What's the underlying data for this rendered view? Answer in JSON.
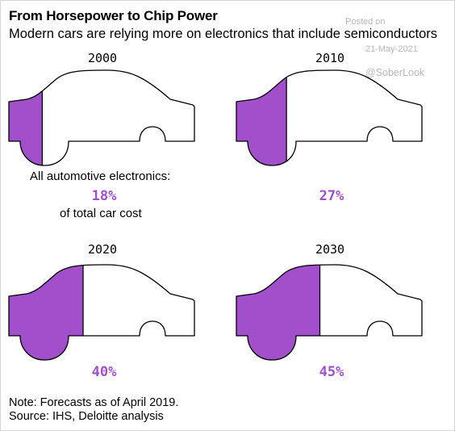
{
  "header": {
    "title": "From Horsepower to Chip Power",
    "subtitle": "Modern cars are relying more on electronics that include semiconductors"
  },
  "watermark": {
    "posted": "Posted on",
    "date": "21-May-2021",
    "handle": "@SoberLook"
  },
  "labels": {
    "lead": "All automotive electronics:",
    "trail": "of total car cost"
  },
  "notes": {
    "forecast": "Note: Forecasts as of April 2019.",
    "source": "Source: IHS, Deloitte analysis"
  },
  "colors": {
    "accent": "#a24fcb",
    "outline": "#000000"
  },
  "chart_data": {
    "type": "bar",
    "categories": [
      "2000",
      "2010",
      "2020",
      "2030"
    ],
    "values": [
      18,
      27,
      40,
      45
    ],
    "value_labels": [
      "18%",
      "27%",
      "40%",
      "45%"
    ],
    "value_unit": "% of total car cost",
    "ylim": [
      0,
      100
    ]
  }
}
